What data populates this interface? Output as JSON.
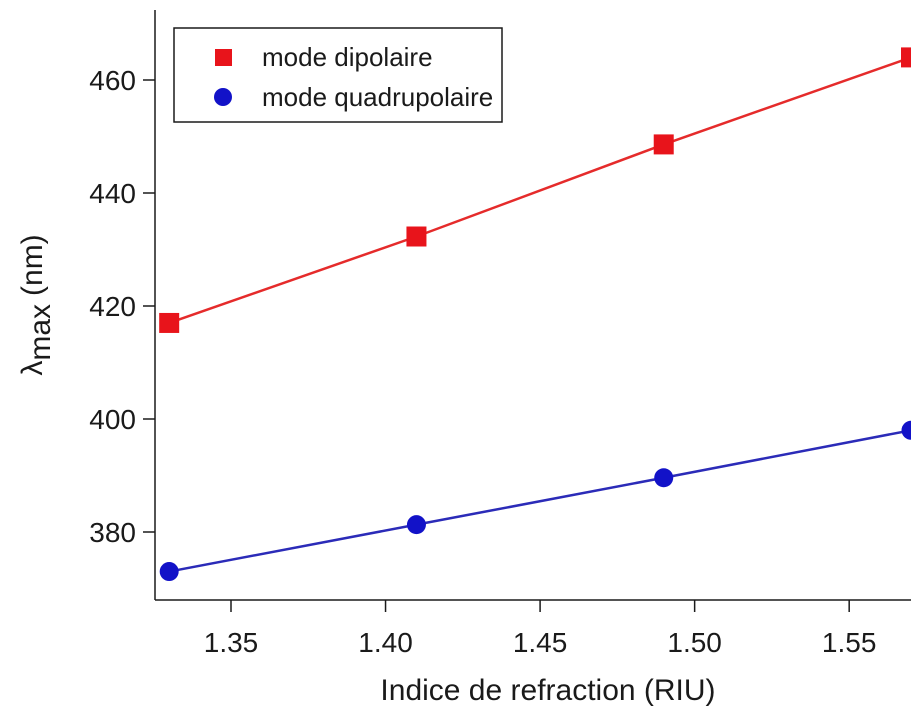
{
  "chart_data": {
    "type": "line",
    "title": "",
    "xlabel": "Indice de refraction (RIU)",
    "ylabel": "λmax (nm)",
    "ylabel_symbol": "λ",
    "ylabel_subscript": "max",
    "ylabel_unit": "(nm)",
    "xlim": [
      1.325,
      1.57
    ],
    "ylim": [
      370,
      473
    ],
    "xticks": [
      1.35,
      1.4,
      1.45,
      1.5,
      1.55
    ],
    "xtick_labels": [
      "1.35",
      "1.40",
      "1.45",
      "1.50",
      "1.55"
    ],
    "yticks": [
      380,
      400,
      420,
      440,
      460
    ],
    "ytick_labels": [
      "380",
      "400",
      "420",
      "440",
      "460"
    ],
    "grid": false,
    "legend_position": "top-left",
    "series": [
      {
        "name": "mode dipolaire",
        "marker": "square",
        "color": "#e8141b",
        "line_color": "#e52b2b",
        "x": [
          1.33,
          1.41,
          1.49,
          1.57
        ],
        "y": [
          417.0,
          432.3,
          448.6,
          464.0
        ]
      },
      {
        "name": "mode quadrupolaire",
        "marker": "circle",
        "color": "#1212c8",
        "line_color": "#2b2bb8",
        "x": [
          1.33,
          1.41,
          1.49,
          1.57
        ],
        "y": [
          373.0,
          381.3,
          389.6,
          398.0
        ]
      }
    ]
  }
}
